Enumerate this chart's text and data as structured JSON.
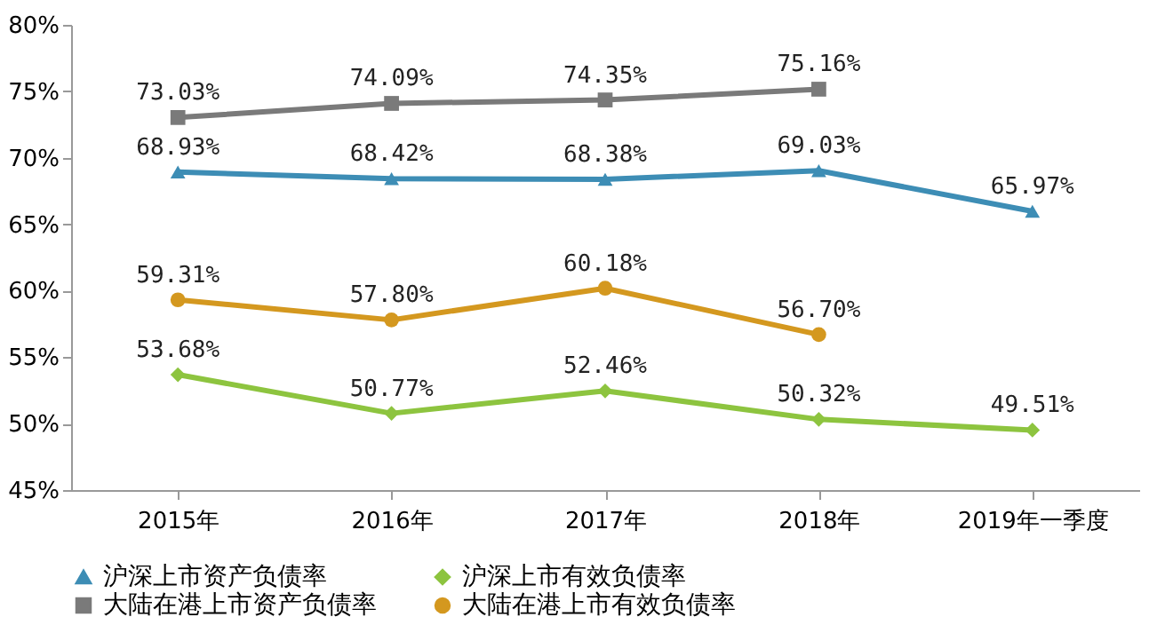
{
  "chart_data": {
    "type": "line",
    "categories": [
      "2015年",
      "2016年",
      "2017年",
      "2018年",
      "2019年一季度"
    ],
    "ylim": [
      45,
      80
    ],
    "yticks": [
      {
        "value": 45,
        "label": "45%"
      },
      {
        "value": 50,
        "label": "50%"
      },
      {
        "value": 55,
        "label": "55%"
      },
      {
        "value": 60,
        "label": "60%"
      },
      {
        "value": 65,
        "label": "65%"
      },
      {
        "value": 70,
        "label": "70%"
      },
      {
        "value": 75,
        "label": "75%"
      },
      {
        "value": 80,
        "label": "80%"
      }
    ],
    "grid": false,
    "legend": "bottom",
    "series": [
      {
        "name": "沪深上市资产负债率",
        "color": "#3d8db5",
        "marker": "triangle",
        "values": [
          68.93,
          68.42,
          68.38,
          69.03,
          65.97
        ],
        "value_labels": [
          "68.93%",
          "68.42%",
          "68.38%",
          "69.03%",
          "65.97%"
        ]
      },
      {
        "name": "沪深上市有效负债率",
        "color": "#8dc43f",
        "marker": "diamond",
        "values": [
          53.68,
          50.77,
          52.46,
          50.32,
          49.51
        ],
        "value_labels": [
          "53.68%",
          "50.77%",
          "52.46%",
          "50.32%",
          "49.51%"
        ]
      },
      {
        "name": "大陆在港上市资产负债率",
        "color": "#7a7a7a",
        "marker": "square",
        "values": [
          73.03,
          74.09,
          74.35,
          75.16,
          null
        ],
        "value_labels": [
          "73.03%",
          "74.09%",
          "74.35%",
          "75.16%",
          null
        ]
      },
      {
        "name": "大陆在港上市有效负债率",
        "color": "#d4981f",
        "marker": "circle",
        "values": [
          59.31,
          57.8,
          60.18,
          56.7,
          null
        ],
        "value_labels": [
          "59.31%",
          "57.80%",
          "60.18%",
          "56.70%",
          null
        ]
      }
    ]
  }
}
